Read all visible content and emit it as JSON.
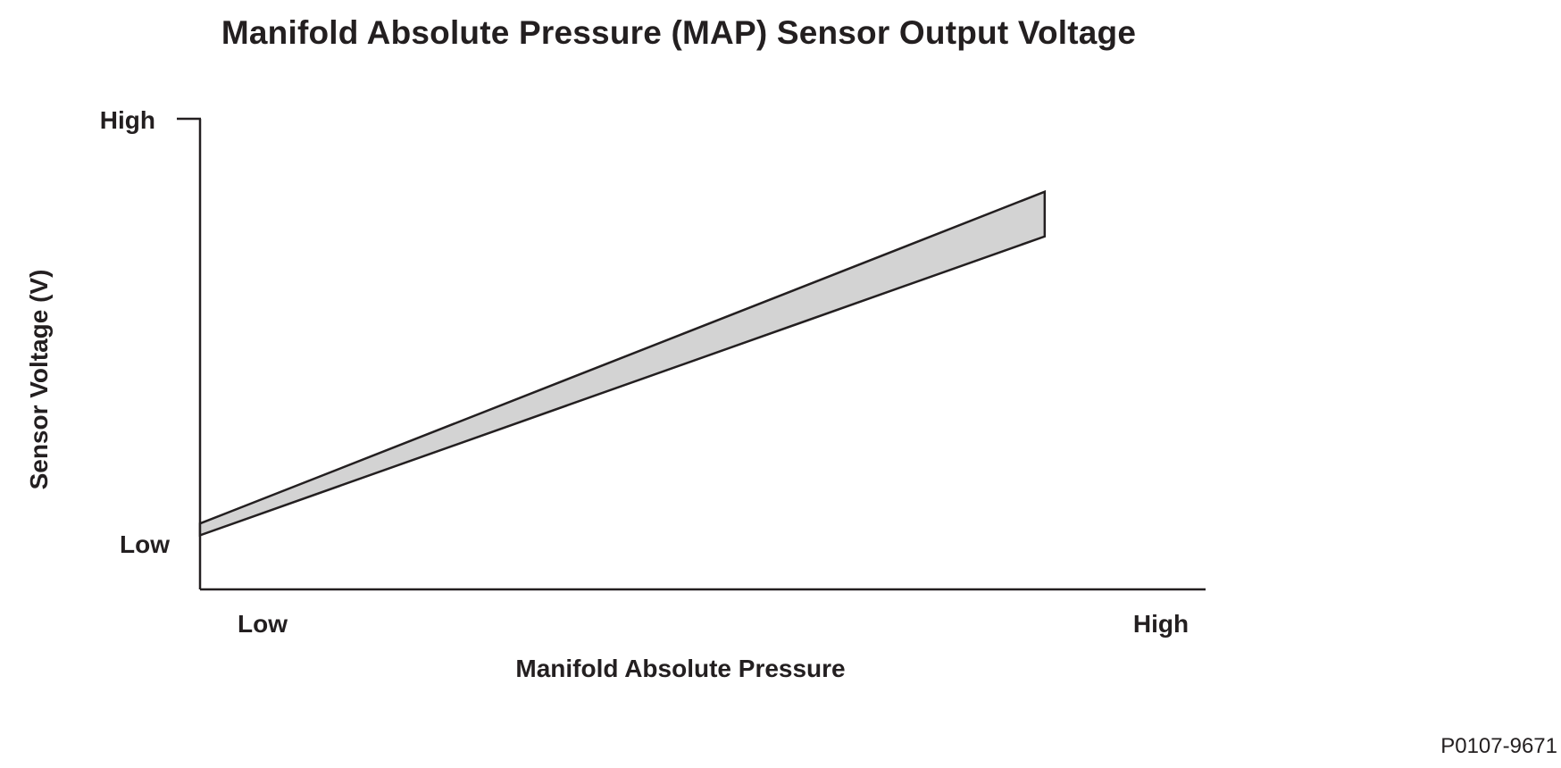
{
  "chart_data": {
    "type": "area",
    "title": "Manifold Absolute Pressure (MAP) Sensor Output Voltage",
    "xlabel": "Manifold Absolute Pressure",
    "ylabel": "Sensor Voltage (V)",
    "x_ticks": [
      "Low",
      "High"
    ],
    "y_ticks": [
      "High",
      "Low"
    ],
    "xlim": [
      0,
      1
    ],
    "ylim": [
      0,
      1
    ],
    "grid": false,
    "legend": "none",
    "band": {
      "x": [
        0,
        0.84
      ],
      "upper": [
        0.14,
        0.845
      ],
      "lower": [
        0.115,
        0.75
      ]
    },
    "fill_color": "#d3d3d3",
    "line_color": "#231f20"
  },
  "figure_id": "P0107-9671"
}
